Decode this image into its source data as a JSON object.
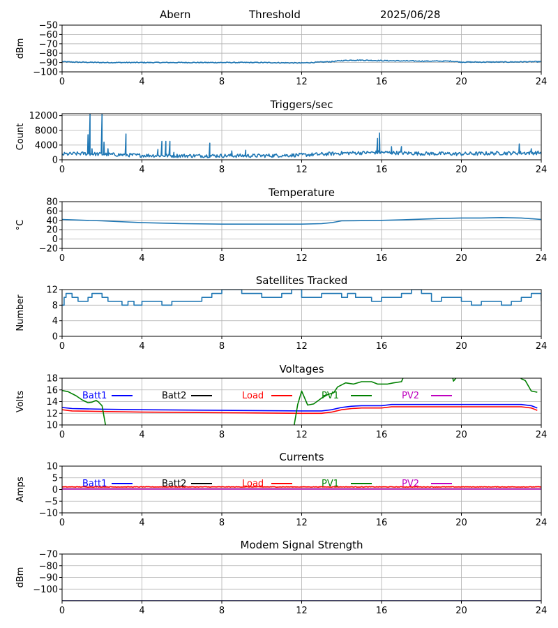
{
  "header": {
    "station": "Abern",
    "mode": "Threshold",
    "date": "2025/06/28"
  },
  "chart_data": [
    {
      "id": "threshold",
      "type": "line",
      "title": "",
      "xlabel": "",
      "ylabel": "dBm",
      "xlim": [
        0,
        24
      ],
      "ylim": [
        -100,
        -50
      ],
      "xticks": [
        0,
        4,
        8,
        12,
        16,
        20,
        24
      ],
      "xtick_labels": [
        "0",
        "4",
        "8",
        "12",
        "16",
        "20",
        "24"
      ],
      "yticks": [
        -100,
        -90,
        -80,
        -70,
        -60,
        -50
      ],
      "ytick_labels": [
        "−100",
        "−90",
        "−80",
        "−70",
        "−60",
        "−50"
      ],
      "grid": true,
      "series": [
        {
          "color": "#1f77b4",
          "noise": 0.5,
          "x": [
            0,
            0.5,
            2,
            4,
            8,
            10,
            12,
            13.5,
            14,
            14.5,
            15,
            16,
            18,
            19.5,
            20,
            22,
            24
          ],
          "y": [
            -89,
            -89.5,
            -90,
            -90,
            -90,
            -90,
            -90.5,
            -89,
            -88,
            -87.5,
            -87.5,
            -88,
            -88.5,
            -88.5,
            -89.5,
            -89.5,
            -89
          ]
        }
      ]
    },
    {
      "id": "triggers",
      "type": "line",
      "title": "Triggers/sec",
      "xlabel": "",
      "ylabel": "Count",
      "xlim": [
        0,
        24
      ],
      "ylim": [
        0,
        12500
      ],
      "xticks": [
        0,
        4,
        8,
        12,
        16,
        20,
        24
      ],
      "xtick_labels": [
        "0",
        "4",
        "8",
        "12",
        "16",
        "20",
        "24"
      ],
      "yticks": [
        0,
        4000,
        8000,
        12000
      ],
      "ytick_labels": [
        "0",
        "4000",
        "8000",
        "12000"
      ],
      "grid": true,
      "series": [
        {
          "color": "#1f77b4",
          "noise": 500,
          "x": [
            0,
            1,
            2,
            4,
            6,
            8,
            10,
            12,
            13,
            14,
            16,
            18,
            20,
            22,
            24
          ],
          "y": [
            1500,
            1700,
            1500,
            1200,
            1100,
            1100,
            1100,
            1300,
            1500,
            1800,
            2000,
            1700,
            1600,
            1800,
            1900
          ],
          "spikes": [
            [
              1.3,
              6800
            ],
            [
              1.4,
              12500
            ],
            [
              1.5,
              3000
            ],
            [
              2.0,
              12500
            ],
            [
              2.1,
              4800
            ],
            [
              2.3,
              3000
            ],
            [
              3.2,
              7000
            ],
            [
              4.8,
              2800
            ],
            [
              5.0,
              5000
            ],
            [
              5.2,
              5000
            ],
            [
              5.4,
              5000
            ],
            [
              5.6,
              2000
            ],
            [
              7.4,
              4500
            ],
            [
              8.5,
              2400
            ],
            [
              9.2,
              2600
            ],
            [
              15.8,
              5800
            ],
            [
              15.9,
              7300
            ],
            [
              16.5,
              3600
            ],
            [
              17.0,
              3600
            ],
            [
              22.9,
              4300
            ],
            [
              23.5,
              3000
            ]
          ]
        }
      ]
    },
    {
      "id": "temperature",
      "type": "line",
      "title": "Temperature",
      "xlabel": "",
      "ylabel": "°C",
      "xlim": [
        0,
        24
      ],
      "ylim": [
        -20,
        80
      ],
      "xticks": [
        0,
        4,
        8,
        12,
        16,
        20,
        24
      ],
      "xtick_labels": [
        "0",
        "4",
        "8",
        "12",
        "16",
        "20",
        "24"
      ],
      "yticks": [
        -20,
        0,
        20,
        40,
        60,
        80
      ],
      "ytick_labels": [
        "−20",
        "0",
        "20",
        "40",
        "60",
        "80"
      ],
      "grid": true,
      "series": [
        {
          "color": "#1f77b4",
          "noise": 0,
          "x": [
            0,
            0.5,
            2,
            4,
            6,
            8,
            10,
            12,
            13,
            13.5,
            14,
            16,
            17,
            19,
            20,
            21,
            22,
            23,
            24
          ],
          "y": [
            42,
            41,
            39,
            35,
            33,
            32,
            32,
            32,
            33,
            35,
            39,
            40,
            41,
            44,
            45,
            45,
            46,
            45,
            42
          ]
        }
      ]
    },
    {
      "id": "satellites",
      "type": "line",
      "title": "Satellites Tracked",
      "xlabel": "",
      "ylabel": "Number",
      "xlim": [
        0,
        24
      ],
      "ylim": [
        0,
        12
      ],
      "xticks": [
        0,
        4,
        8,
        12,
        16,
        20,
        24
      ],
      "xtick_labels": [
        "0",
        "4",
        "8",
        "12",
        "16",
        "20",
        "24"
      ],
      "yticks": [
        0,
        4,
        8,
        12
      ],
      "ytick_labels": [
        "0",
        "4",
        "8",
        "12"
      ],
      "grid": true,
      "step": true,
      "series": [
        {
          "color": "#1f77b4",
          "noise": 0,
          "x": [
            0,
            0.1,
            0.2,
            0.5,
            0.8,
            1.3,
            1.5,
            2.0,
            2.3,
            3.0,
            3.3,
            3.6,
            4.0,
            5.0,
            5.5,
            6.0,
            7.0,
            7.5,
            8.0,
            9.0,
            10.0,
            11.0,
            11.5,
            12.0,
            13.0,
            14.0,
            14.3,
            14.7,
            15.5,
            16.0,
            17.0,
            17.5,
            18.0,
            18.5,
            19.0,
            20.0,
            20.5,
            21.0,
            22.0,
            22.5,
            23.0,
            23.5,
            24.0
          ],
          "y": [
            8,
            10,
            11,
            10,
            9,
            10,
            11,
            10,
            9,
            8,
            9,
            8,
            9,
            8,
            9,
            9,
            10,
            11,
            12,
            11,
            10,
            11,
            12,
            10,
            11,
            10,
            11,
            10,
            9,
            10,
            11,
            12,
            11,
            9,
            10,
            9,
            8,
            9,
            8,
            9,
            10,
            11,
            9
          ]
        }
      ]
    },
    {
      "id": "voltages",
      "type": "line",
      "title": "Voltages",
      "xlabel": "",
      "ylabel": "Volts",
      "xlim": [
        0,
        24
      ],
      "ylim": [
        10,
        18
      ],
      "xticks": [
        0,
        4,
        8,
        12,
        16,
        20,
        24
      ],
      "xtick_labels": [
        "0",
        "4",
        "8",
        "12",
        "16",
        "20",
        "24"
      ],
      "yticks": [
        10,
        12,
        14,
        16,
        18
      ],
      "ytick_labels": [
        "10",
        "12",
        "14",
        "16",
        "18"
      ],
      "grid": true,
      "legend": "top-inside",
      "series": [
        {
          "name": "Batt1",
          "color": "#0000ff",
          "noise": 0,
          "x": [
            0,
            0.5,
            2,
            4,
            8,
            12,
            13,
            13.5,
            14,
            14.5,
            15,
            16,
            16.5,
            17,
            20,
            23,
            23.5,
            23.8
          ],
          "y": [
            13.0,
            12.8,
            12.7,
            12.6,
            12.5,
            12.4,
            12.4,
            12.6,
            13.0,
            13.2,
            13.3,
            13.3,
            13.5,
            13.5,
            13.5,
            13.5,
            13.3,
            12.9
          ]
        },
        {
          "name": "Batt2",
          "color": "#000000",
          "noise": 0,
          "x": [],
          "y": []
        },
        {
          "name": "Load",
          "color": "#ff0000",
          "noise": 0,
          "x": [
            0,
            0.5,
            2,
            4,
            8,
            12,
            13,
            13.5,
            14,
            14.5,
            15,
            16,
            16.5,
            17,
            20,
            23,
            23.5,
            23.8
          ],
          "y": [
            12.6,
            12.4,
            12.3,
            12.2,
            12.1,
            12.0,
            12.0,
            12.2,
            12.6,
            12.8,
            12.9,
            12.9,
            13.1,
            13.1,
            13.1,
            13.1,
            12.9,
            12.5
          ]
        },
        {
          "name": "PV1",
          "color": "#008000",
          "noise": 0,
          "segments": [
            {
              "x": [
                0,
                0.3,
                0.7,
                1.0,
                1.3,
                1.5,
                1.7,
                1.8,
                2.0,
                2.2
              ],
              "y": [
                15.9,
                15.7,
                15.0,
                14.3,
                13.8,
                13.9,
                14.2,
                14.0,
                13.3,
                9.5
              ]
            },
            {
              "x": [
                11.6,
                11.8,
                12.0,
                12.3,
                12.6,
                13.0,
                13.3,
                13.6,
                13.8,
                14.2,
                14.6,
                15.0,
                15.5,
                15.8,
                16.3,
                16.6,
                17.0,
                17.2
              ],
              "y": [
                9.5,
                13.5,
                15.8,
                13.4,
                13.6,
                14.6,
                15.2,
                15.5,
                16.5,
                17.2,
                17.0,
                17.4,
                17.4,
                17.0,
                17.0,
                17.2,
                17.4,
                19
              ]
            },
            {
              "x": [
                19.5,
                19.6,
                19.8,
                20.0
              ],
              "y": [
                19,
                17.5,
                18.3,
                19
              ]
            },
            {
              "x": [
                22.8,
                23.0,
                23.2,
                23.5,
                23.8
              ],
              "y": [
                19,
                17.9,
                17.6,
                15.8,
                15.6
              ]
            }
          ]
        },
        {
          "name": "PV2",
          "color": "#bf00bf",
          "noise": 0,
          "x": [],
          "y": []
        }
      ]
    },
    {
      "id": "currents",
      "type": "line",
      "title": "Currents",
      "xlabel": "",
      "ylabel": "Amps",
      "xlim": [
        0,
        24
      ],
      "ylim": [
        -10,
        10
      ],
      "xticks": [
        0,
        4,
        8,
        12,
        16,
        20,
        24
      ],
      "xtick_labels": [
        "0",
        "4",
        "8",
        "12",
        "16",
        "20",
        "24"
      ],
      "yticks": [
        -10,
        -5,
        0,
        5,
        10
      ],
      "ytick_labels": [
        "−10",
        "−5",
        "0",
        "5",
        "10"
      ],
      "grid": true,
      "legend": "top-inside",
      "series": [
        {
          "name": "Batt1",
          "color": "#0000ff",
          "noise": 0,
          "x": [],
          "y": []
        },
        {
          "name": "Batt2",
          "color": "#000000",
          "noise": 0,
          "x": [],
          "y": []
        },
        {
          "name": "Load",
          "color": "#ff0000",
          "noise": 0.12,
          "x": [
            0,
            24
          ],
          "y": [
            1.1,
            1.1
          ]
        },
        {
          "name": "PV1",
          "color": "#008000",
          "noise": 0,
          "x": [
            0,
            24
          ],
          "y": [
            0.3,
            0.3
          ]
        },
        {
          "name": "PV2",
          "color": "#bf00bf",
          "noise": 0,
          "x": [
            0,
            24
          ],
          "y": [
            0.2,
            0.2
          ]
        }
      ]
    },
    {
      "id": "modem",
      "type": "line",
      "title": "Modem Signal Strength",
      "xlabel": "",
      "ylabel": "dBm",
      "xlim": [
        0,
        24
      ],
      "ylim": [
        -110,
        -70
      ],
      "xticks": [
        0,
        4,
        8,
        12,
        16,
        20,
        24
      ],
      "xtick_labels": [
        "0",
        "4",
        "8",
        "12",
        "16",
        "20",
        "24"
      ],
      "yticks": [
        -100,
        -90,
        -80,
        -70
      ],
      "ytick_labels": [
        "−100",
        "−90",
        "−80",
        "−70"
      ],
      "grid": true,
      "series": [
        {
          "color": "#00008b",
          "noise": 0,
          "x": [
            0,
            24
          ],
          "y": [
            -110,
            -110
          ]
        }
      ]
    }
  ]
}
